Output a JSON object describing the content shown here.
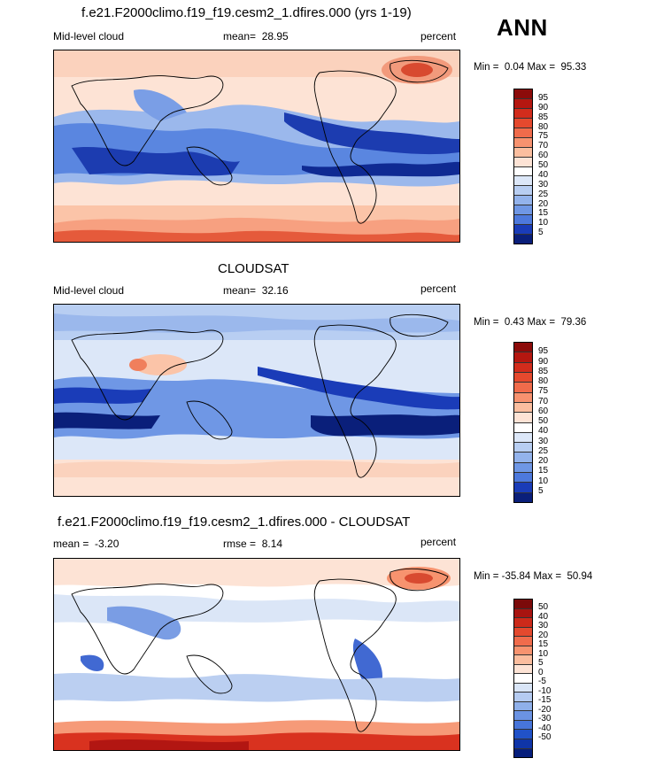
{
  "season": "ANN",
  "palettes": {
    "abs": [
      "#fae6df",
      "#fbd6c4",
      "#fbbfa4",
      "#f7a080",
      "#f07f5c",
      "#e55a3b",
      "#d5321f",
      "#b91612",
      "#8e0b0b",
      "#dee8f8",
      "#bdd0f2",
      "#9bb8ec",
      "#7a9ee6",
      "#5a86e0",
      "#3f6cd6",
      "#2a52c6",
      "#1c3cb0",
      "#0f2a93",
      "#08207a"
    ],
    "abs_order_note": "",
    "diff": [
      "#7b0a0a",
      "#b21612",
      "#d9321f",
      "#ee6240",
      "#f69a78",
      "#fbc4a8",
      "#fde2d3",
      "#ffffff",
      "#dbe6f7",
      "#bbcff1",
      "#9ab6eb",
      "#7a9de4",
      "#5b83dc",
      "#4169d2",
      "#2b4fc3",
      "#1a39ad",
      "#0b2590"
    ]
  },
  "chart_data": [
    {
      "type": "heatmap",
      "title": "f.e21.F2000climo.f19_f19.cesm2_1.dfires.000 (yrs 1-19)",
      "left_label": "Mid-level cloud",
      "stat_label": "mean=",
      "stat_value": "28.95",
      "units": "percent",
      "min_label": "Min =",
      "min": "0.04",
      "max_label": "Max =",
      "max": "95.33",
      "colorbar": [
        "95",
        "90",
        "85",
        "80",
        "75",
        "70",
        "60",
        "50",
        "40",
        "30",
        "25",
        "20",
        "15",
        "10",
        "5"
      ],
      "colors": [
        "#8c0b0a",
        "#b51710",
        "#d22c1c",
        "#e5492e",
        "#f06b4b",
        "#f7926f",
        "#fbbe9f",
        "#fde3d5",
        "#dce7f8",
        "#b8cef2",
        "#93b3ec",
        "#6f97e5",
        "#4d79dd",
        "#305bd0",
        "#1a3cb8",
        "#0a2394"
      ],
      "colorbar_fill": [
        "#8c0b0a",
        "#b51710",
        "#d22c1c",
        "#e5492e",
        "#f06b4b",
        "#f7926f",
        "#fbbe9f",
        "#fde3d5",
        "#ffffff",
        "#dce7f8",
        "#b8cef2",
        "#93b3ec",
        "#6f97e5",
        "#4d79dd",
        "#1a3cb8",
        "#0a1f7a"
      ],
      "map_note": ""
    },
    {
      "type": "heatmap",
      "title": "CLOUDSAT",
      "left_label": "Mid-level cloud",
      "stat_label": "mean=",
      "stat_value": "32.16",
      "units": "percent",
      "min_label": "Min =",
      "min": "0.43",
      "max_label": "Max =",
      "max": "79.36",
      "colorbar": [
        "95",
        "90",
        "85",
        "80",
        "75",
        "70",
        "60",
        "50",
        "40",
        "30",
        "25",
        "20",
        "15",
        "10",
        "5"
      ],
      "colorbar_fill": [
        "#8c0b0a",
        "#b51710",
        "#d22c1c",
        "#e5492e",
        "#f06b4b",
        "#f7926f",
        "#fbbe9f",
        "#fde3d5",
        "#ffffff",
        "#dce7f8",
        "#b8cef2",
        "#93b3ec",
        "#6f97e5",
        "#4d79dd",
        "#1a3cb8",
        "#0a1f7a"
      ]
    },
    {
      "type": "heatmap",
      "title": "f.e21.F2000climo.f19_f19.cesm2_1.dfires.000 - CLOUDSAT",
      "left_label": "mean =",
      "left_value": "-3.20",
      "stat_label": "rmse =",
      "stat_value": "8.14",
      "units": "percent",
      "min_label": "Min =",
      "min": "-35.84",
      "max_label": "Max =",
      "max": "50.94",
      "colorbar": [
        "50",
        "40",
        "30",
        "20",
        "15",
        "10",
        "5",
        "0",
        "-5",
        "-10",
        "-15",
        "-20",
        "-30",
        "-40",
        "-50"
      ],
      "colorbar_fill": [
        "#7b0a0a",
        "#a81410",
        "#cc2a1a",
        "#e4492e",
        "#f06c4c",
        "#f7936f",
        "#fbbd9e",
        "#fde3d5",
        "#ffffff",
        "#d9e5f7",
        "#b5cbf1",
        "#8fb0ea",
        "#6b93e3",
        "#4775da",
        "#2152c8",
        "#0f35a8",
        "#061e7c"
      ]
    }
  ]
}
